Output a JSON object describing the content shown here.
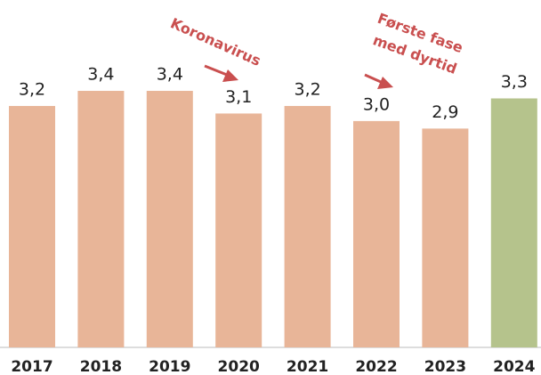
{
  "chart_data": {
    "type": "bar",
    "categories": [
      "2017",
      "2018",
      "2019",
      "2020",
      "2021",
      "2022",
      "2023",
      "2024"
    ],
    "values": [
      3.2,
      3.4,
      3.4,
      3.1,
      3.2,
      3.0,
      2.9,
      3.3
    ],
    "value_labels": [
      "3,2",
      "3,4",
      "3,4",
      "3,1",
      "3,2",
      "3,0",
      "2,9",
      "3,3"
    ],
    "colors": [
      "#e8b598",
      "#e8b598",
      "#e8b598",
      "#e8b598",
      "#e8b598",
      "#e8b598",
      "#e8b598",
      "#b5c38c"
    ],
    "annotations": [
      "Koronavirus",
      "Første fase",
      "med dyrtid"
    ]
  }
}
